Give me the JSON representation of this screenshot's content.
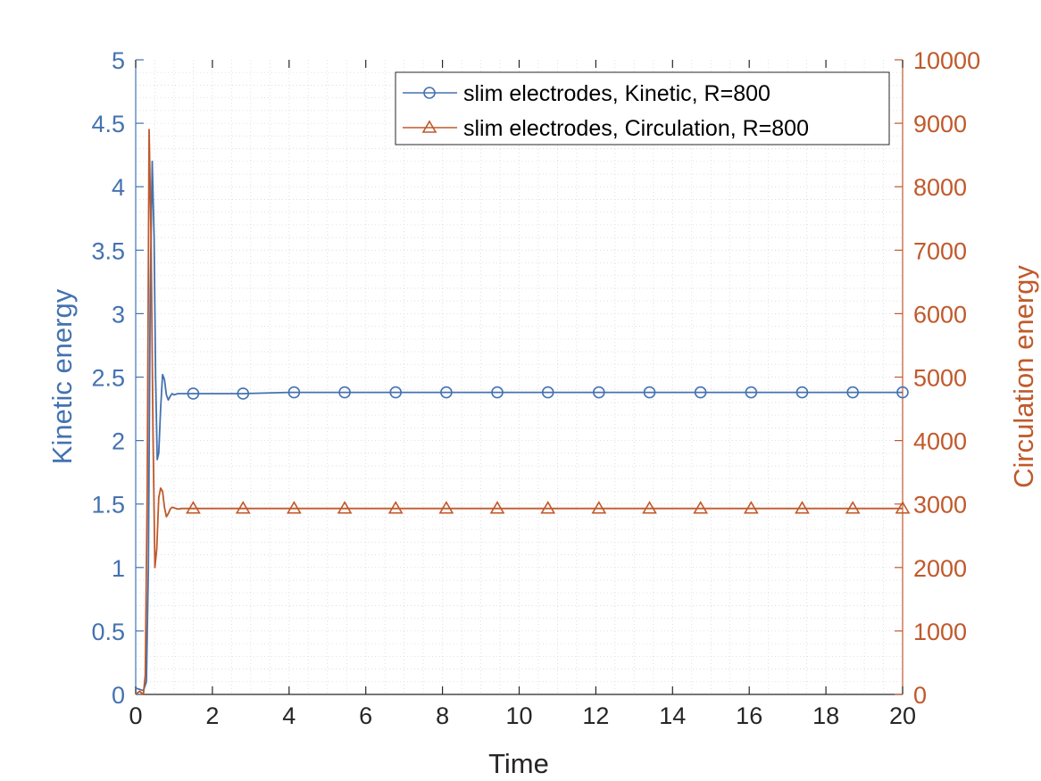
{
  "chart_data": {
    "type": "line",
    "xlabel": "Time",
    "ylabel_left": "Kinetic energy",
    "ylabel_right": "Circulation energy",
    "xlim": [
      0,
      20
    ],
    "ylim_left": [
      0,
      5
    ],
    "ylim_right": [
      0,
      10000
    ],
    "x_ticks": [
      "0",
      "2",
      "4",
      "6",
      "8",
      "10",
      "12",
      "14",
      "16",
      "18",
      "20"
    ],
    "y_ticks_left": [
      "0",
      "0.5",
      "1",
      "1.5",
      "2",
      "2.5",
      "3",
      "3.5",
      "4",
      "4.5",
      "5"
    ],
    "y_ticks_right": [
      "0",
      "1000",
      "2000",
      "3000",
      "4000",
      "5000",
      "6000",
      "7000",
      "8000",
      "9000",
      "10000"
    ],
    "grid": "minor dotted",
    "legend_position": "top-right",
    "colors": {
      "kinetic": "#4472b0",
      "circulation": "#c0592b",
      "axis_x": "#262626"
    },
    "series": [
      {
        "name": "slim electrodes, Kinetic, R=800",
        "axis": "left",
        "marker": "circle",
        "color": "#4472b0",
        "x": [
          0,
          0.2,
          0.28,
          0.33,
          0.38,
          0.43,
          0.48,
          0.52,
          0.56,
          0.6,
          0.65,
          0.7,
          0.75,
          0.8,
          0.85,
          0.9,
          0.95,
          1.0,
          1.1,
          1.2,
          1.3,
          1.5,
          2.0,
          2.8,
          4.0,
          6.0,
          10.0,
          14.0,
          20.0
        ],
        "y": [
          0.05,
          0.03,
          0.1,
          1.0,
          3.2,
          4.2,
          3.6,
          2.5,
          1.85,
          1.9,
          2.25,
          2.52,
          2.48,
          2.36,
          2.32,
          2.35,
          2.37,
          2.36,
          2.37,
          2.37,
          2.37,
          2.37,
          2.37,
          2.37,
          2.38,
          2.38,
          2.38,
          2.38,
          2.38
        ],
        "marker_x": [
          1.5,
          2.8,
          4.13,
          5.45,
          6.78,
          8.1,
          9.43,
          10.75,
          12.08,
          13.4,
          14.73,
          16.05,
          17.38,
          18.7,
          20.0
        ],
        "marker_y": [
          2.37,
          2.37,
          2.38,
          2.38,
          2.38,
          2.38,
          2.38,
          2.38,
          2.38,
          2.38,
          2.38,
          2.38,
          2.38,
          2.38,
          2.38
        ]
      },
      {
        "name": "slim electrodes, Circulation, R=800",
        "axis": "right",
        "marker": "triangle",
        "color": "#c0592b",
        "x": [
          0,
          0.1,
          0.2,
          0.25,
          0.3,
          0.35,
          0.4,
          0.45,
          0.5,
          0.55,
          0.6,
          0.65,
          0.7,
          0.75,
          0.8,
          0.85,
          0.9,
          0.95,
          1.0,
          1.1,
          1.2,
          1.3,
          1.5,
          2.0,
          2.8,
          4.0,
          10.0,
          20.0
        ],
        "y": [
          0,
          50,
          0,
          300,
          3200,
          8900,
          7200,
          4200,
          2000,
          2300,
          3100,
          3250,
          3200,
          2950,
          2800,
          2850,
          2920,
          2950,
          2940,
          2920,
          2930,
          2930,
          2930,
          2930,
          2930,
          2930,
          2930,
          2930
        ],
        "marker_x": [
          1.5,
          2.8,
          4.13,
          5.45,
          6.78,
          8.1,
          9.43,
          10.75,
          12.08,
          13.4,
          14.73,
          16.05,
          17.38,
          18.7,
          20.0
        ],
        "marker_y": [
          2930,
          2930,
          2930,
          2930,
          2930,
          2930,
          2930,
          2930,
          2930,
          2930,
          2930,
          2930,
          2930,
          2930,
          2930
        ]
      }
    ]
  }
}
